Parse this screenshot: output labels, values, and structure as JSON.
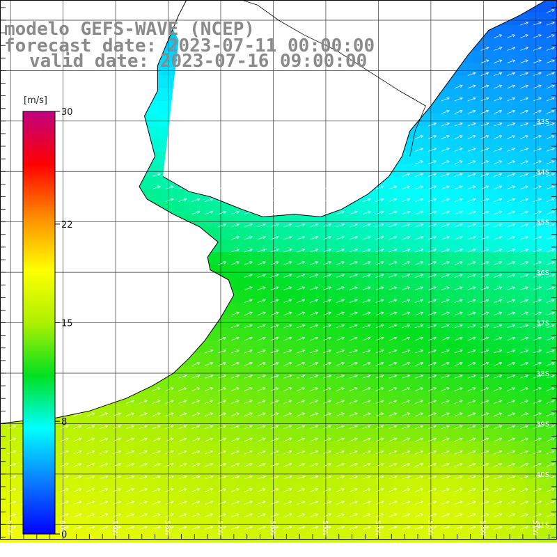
{
  "header": {
    "model_line": "modelo GEFS-WAVE (NCEP)",
    "forecast_line": "forecast date: 2023-07-11 00:00:00",
    "valid_line": "valid date: 2023-07-16 09:00:00"
  },
  "colorbar": {
    "unit": "[m/s]",
    "ticks": [
      {
        "value": 30,
        "label": "30"
      },
      {
        "value": 22,
        "label": "22"
      },
      {
        "value": 15,
        "label": "15"
      },
      {
        "value": 8,
        "label": "8"
      },
      {
        "value": 0,
        "label": "0"
      }
    ],
    "min": 0,
    "max": 30,
    "colors": [
      "#0000ff",
      "#0a7dff",
      "#00ffff",
      "#00e020",
      "#aef000",
      "#ffff00",
      "#ff8c00",
      "#ff0000",
      "#c00080"
    ]
  },
  "map": {
    "lon_range": [
      -61.2,
      -50.6
    ],
    "lat_range": [
      -41.3,
      -30.6
    ],
    "grid_step_deg": 1,
    "land_color": "#ffffff",
    "grid_color": "#333333",
    "coast_color": "#000000",
    "lat_labels": [
      {
        "lat": -33,
        "label": "33S"
      },
      {
        "lat": -34,
        "label": "34S"
      },
      {
        "lat": -35,
        "label": "35S"
      },
      {
        "lat": -36,
        "label": "36S"
      },
      {
        "lat": -37,
        "label": "37S"
      },
      {
        "lat": -38,
        "label": "38S"
      },
      {
        "lat": -39,
        "label": "39S"
      },
      {
        "lat": -40,
        "label": "40S"
      },
      {
        "lat": -41,
        "label": "41S"
      }
    ],
    "lon_labels": [
      {
        "lon": -61,
        "label": "61W"
      },
      {
        "lon": -60,
        "label": "60W"
      },
      {
        "lon": -59,
        "label": "59W"
      },
      {
        "lon": -58,
        "label": "58W"
      },
      {
        "lon": -57,
        "label": "57W"
      },
      {
        "lon": -56,
        "label": "56W"
      },
      {
        "lon": -55,
        "label": "55W"
      },
      {
        "lon": -54,
        "label": "54W"
      },
      {
        "lon": -53,
        "label": "53W"
      },
      {
        "lon": -52,
        "label": "52W"
      },
      {
        "lon": -51,
        "label": "51W"
      }
    ],
    "coastline": [
      [
        -61.2,
        -39.0
      ],
      [
        -60.8,
        -38.95
      ],
      [
        -60.2,
        -38.9
      ],
      [
        -59.5,
        -38.75
      ],
      [
        -58.8,
        -38.5
      ],
      [
        -58.3,
        -38.25
      ],
      [
        -57.9,
        -38.0
      ],
      [
        -57.6,
        -37.7
      ],
      [
        -57.3,
        -37.35
      ],
      [
        -57.0,
        -36.9
      ],
      [
        -56.75,
        -36.45
      ],
      [
        -56.85,
        -36.15
      ],
      [
        -57.2,
        -35.95
      ],
      [
        -57.25,
        -35.7
      ],
      [
        -57.05,
        -35.4
      ],
      [
        -57.4,
        -35.1
      ],
      [
        -57.9,
        -34.85
      ],
      [
        -58.4,
        -34.55
      ],
      [
        -58.55,
        -34.3
      ],
      [
        -58.4,
        -34.0
      ],
      [
        -58.25,
        -33.7
      ],
      [
        -58.35,
        -33.3
      ],
      [
        -58.45,
        -32.9
      ],
      [
        -58.2,
        -32.4
      ],
      [
        -58.2,
        -31.9
      ],
      [
        -58.0,
        -31.4
      ],
      [
        -57.8,
        -30.9
      ],
      [
        -57.65,
        -30.6
      ]
    ],
    "coastline_uruguay": [
      [
        -58.1,
        -34.1
      ],
      [
        -57.6,
        -34.4
      ],
      [
        -57.2,
        -34.5
      ],
      [
        -56.6,
        -34.75
      ],
      [
        -56.2,
        -34.9
      ],
      [
        -55.6,
        -34.85
      ],
      [
        -55.1,
        -34.9
      ],
      [
        -54.7,
        -34.75
      ],
      [
        -54.2,
        -34.45
      ],
      [
        -53.8,
        -34.1
      ],
      [
        -53.55,
        -33.7
      ],
      [
        -53.4,
        -33.2
      ],
      [
        -53.0,
        -32.7
      ],
      [
        -52.65,
        -32.2
      ],
      [
        -52.3,
        -31.7
      ],
      [
        -51.9,
        -31.2
      ],
      [
        -51.3,
        -30.9
      ],
      [
        -50.8,
        -30.6
      ]
    ],
    "border_uy_br": [
      [
        -53.4,
        -33.7
      ],
      [
        -53.3,
        -33.2
      ],
      [
        -53.1,
        -32.7
      ],
      [
        -53.6,
        -32.4
      ],
      [
        -54.2,
        -32.0
      ],
      [
        -54.8,
        -31.6
      ],
      [
        -55.4,
        -31.3
      ],
      [
        -55.9,
        -31.0
      ],
      [
        -56.3,
        -30.7
      ],
      [
        -56.6,
        -30.6
      ]
    ]
  }
}
